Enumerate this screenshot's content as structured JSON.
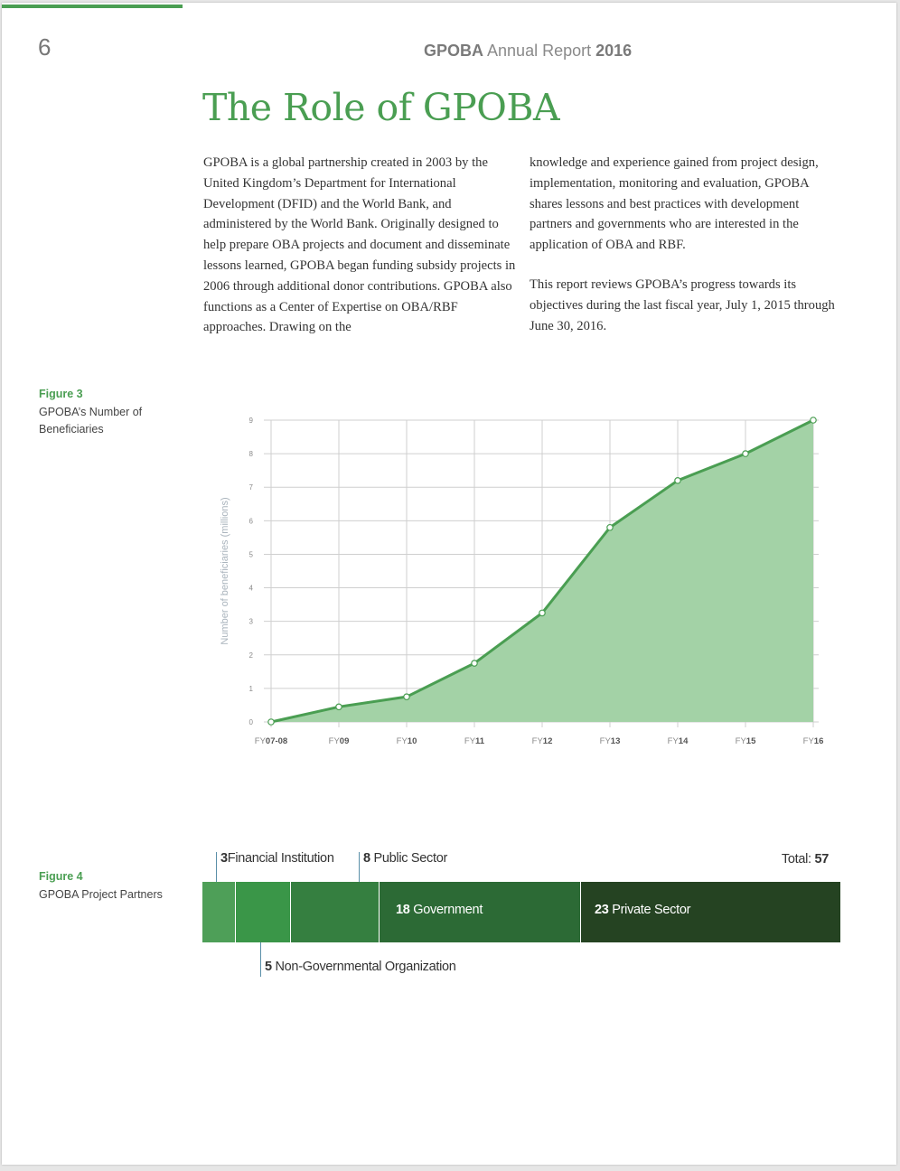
{
  "header": {
    "page_number": "6",
    "report_org": "GPOBA",
    "report_name": "Annual Report",
    "report_year": "2016"
  },
  "title": "The Role of GPOBA",
  "body": {
    "col1_p1": "GPOBA is a global partnership created in 2003 by the United Kingdom’s Department for International Development (DFID) and the World Bank, and administered by the World Bank. Originally designed to help prepare OBA projects and document and disseminate lessons learned, GPOBA began funding subsidy projects in 2006 through additional donor contributions. GPOBA also functions as a Center of Expertise on OBA/RBF approaches. Drawing on the",
    "col2_p1": "knowledge and experience gained from project design, implementation, monitoring and evaluation, GPOBA shares lessons and best practices with development partners and governments who are interested in the application of OBA and RBF.",
    "col2_p2": "This report reviews GPOBA’s progress towards its objectives during the last fiscal year, July 1, 2015 through June 30, 2016."
  },
  "figure3": {
    "label": "Figure 3",
    "caption": "GPOBA’s Number of Beneficiaries"
  },
  "figure4": {
    "label": "Figure 4",
    "caption": "GPOBA Project Partners",
    "total_label": "Total:",
    "total_value": "57"
  },
  "colors": {
    "accent": "#4a9e52",
    "area_fill": "#a3d2a6",
    "line": "#4a9e52"
  },
  "chart_data": [
    {
      "type": "area",
      "title": "",
      "ylabel": "Number of beneficiaries (millions)",
      "xlabel": "",
      "ylim": [
        0,
        9
      ],
      "yticks": [
        "0",
        "1",
        "2",
        "3",
        "4",
        "5",
        "6",
        "7",
        "8",
        "9"
      ],
      "x_prefixes": [
        "FY",
        "FY",
        "FY",
        "FY",
        "FY",
        "FY",
        "FY",
        "FY",
        "FY"
      ],
      "x_suffixes": [
        "07-08",
        "09",
        "10",
        "11",
        "12",
        "13",
        "14",
        "15",
        "16"
      ],
      "categories": [
        "FY07-08",
        "FY09",
        "FY10",
        "FY11",
        "FY12",
        "FY13",
        "FY14",
        "FY15",
        "FY16"
      ],
      "values": [
        0,
        0.45,
        0.75,
        1.75,
        3.25,
        5.8,
        7.2,
        8.0,
        9.0
      ],
      "grid": true
    },
    {
      "type": "bar",
      "orientation": "horizontal-stacked",
      "title": "",
      "total": 57,
      "segments": [
        {
          "name": "Non-Governmental Organization",
          "value": 5,
          "color": "#4e9f58"
        },
        {
          "name": "Financial Institution",
          "value": 3,
          "color": "#3a9648"
        },
        {
          "name": "Public Sector",
          "value": 8,
          "color": "#357f40"
        },
        {
          "name": "Government",
          "value": 18,
          "color": "#2c6a35"
        },
        {
          "name": "Private Sector",
          "value": 23,
          "color": "#254322"
        }
      ]
    }
  ],
  "labels": {
    "fin_num": "3",
    "fin_name": "Financial Institution",
    "pub_num": "8",
    "pub_name": "Public Sector",
    "gov_num": "18",
    "gov_name": "Government",
    "priv_num": "23",
    "priv_name": "Private Sector",
    "ngo_num": "5",
    "ngo_name": "Non-Governmental Organization"
  }
}
